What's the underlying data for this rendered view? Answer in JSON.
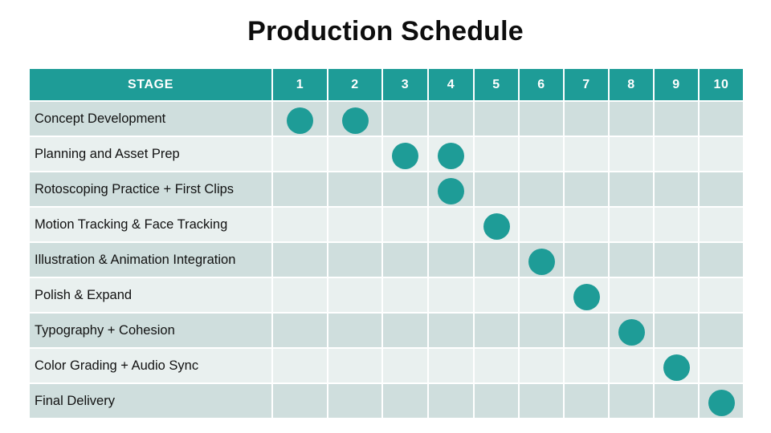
{
  "title": "Production Schedule",
  "colors": {
    "teal": "#1e9c97",
    "row_dark": "#cfdedd",
    "row_light": "#e9f0ef",
    "header_text": "#ffffff",
    "body_text": "#111111",
    "grid": "#ffffff"
  },
  "chart_data": {
    "type": "table",
    "subtype": "gantt-milestone-dots",
    "title": "Production Schedule",
    "columns": [
      "STAGE",
      "1",
      "2",
      "3",
      "4",
      "5",
      "6",
      "7",
      "8",
      "9",
      "10"
    ],
    "x_axis_meaning": "stage number 1-10",
    "marker": "teal filled circle",
    "rows": [
      {
        "label": "Concept Development",
        "marks": [
          1,
          2
        ]
      },
      {
        "label": "Planning and Asset Prep",
        "marks": [
          3,
          4
        ]
      },
      {
        "label": "Rotoscoping Practice + First Clips",
        "marks": [
          4
        ]
      },
      {
        "label": "Motion Tracking & Face Tracking",
        "marks": [
          5
        ]
      },
      {
        "label": "Illustration & Animation Integration",
        "marks": [
          6
        ]
      },
      {
        "label": "Polish & Expand",
        "marks": [
          7
        ]
      },
      {
        "label": "Typography + Cohesion",
        "marks": [
          8
        ]
      },
      {
        "label": "Color Grading + Audio Sync",
        "marks": [
          9
        ]
      },
      {
        "label": "Final Delivery",
        "marks": [
          10
        ]
      }
    ]
  }
}
